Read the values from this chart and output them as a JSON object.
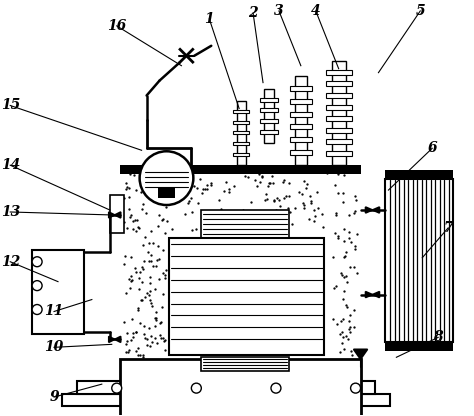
{
  "background_color": "#ffffff",
  "line_color": "#000000",
  "figsize": [
    4.74,
    4.16
  ],
  "dpi": 100,
  "label_positions": {
    "1": [
      208,
      18,
      238,
      108
    ],
    "2": [
      252,
      12,
      262,
      82
    ],
    "3": [
      278,
      10,
      300,
      65
    ],
    "4": [
      315,
      10,
      338,
      68
    ],
    "5": [
      420,
      10,
      378,
      72
    ],
    "6": [
      432,
      148,
      388,
      190
    ],
    "7": [
      448,
      228,
      422,
      258
    ],
    "8": [
      438,
      338,
      396,
      358
    ],
    "9": [
      52,
      398,
      100,
      385
    ],
    "10": [
      52,
      348,
      110,
      345
    ],
    "11": [
      52,
      312,
      90,
      300
    ],
    "12": [
      8,
      262,
      56,
      282
    ],
    "13": [
      8,
      212,
      110,
      215
    ],
    "14": [
      8,
      165,
      108,
      210
    ],
    "15": [
      8,
      105,
      140,
      150
    ],
    "16": [
      115,
      25,
      180,
      65
    ]
  }
}
